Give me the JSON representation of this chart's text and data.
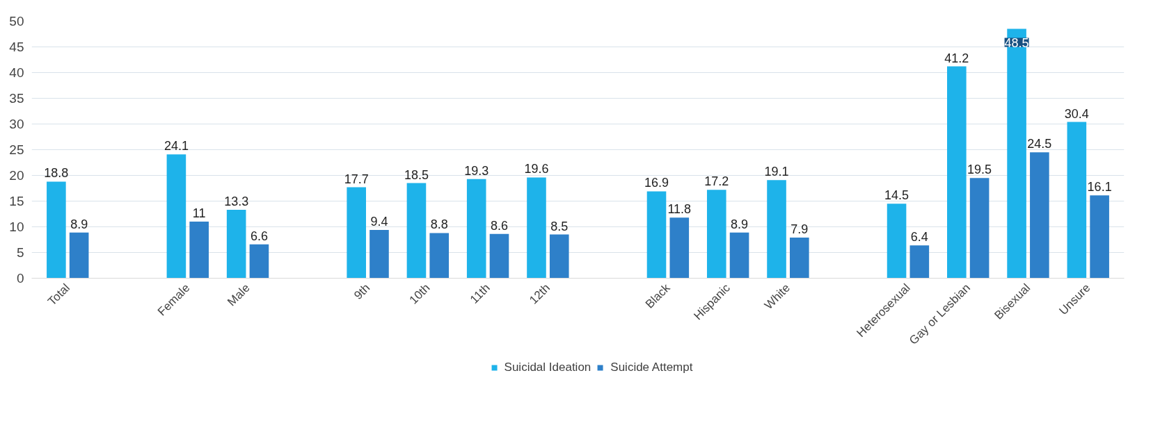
{
  "chart_data": {
    "type": "bar",
    "categories": [
      "Total",
      null,
      "Female",
      "Male",
      null,
      "9th",
      "10th",
      "11th",
      "12th",
      null,
      "Black",
      "Hispanic",
      "White",
      null,
      "Heterosexual",
      "Gay or Lesbian",
      "Bisexual",
      "Unsure"
    ],
    "series": [
      {
        "name": "Suicidal Ideation",
        "color": "#1eb3ea",
        "values": [
          18.8,
          null,
          24.1,
          13.3,
          null,
          17.7,
          18.5,
          19.3,
          19.6,
          null,
          16.9,
          17.2,
          19.1,
          null,
          14.5,
          41.2,
          48.5,
          30.4
        ]
      },
      {
        "name": "Suicide Attempt",
        "color": "#2e80c9",
        "values": [
          8.9,
          null,
          11,
          6.6,
          null,
          9.4,
          8.8,
          8.6,
          8.5,
          null,
          11.8,
          8.9,
          7.9,
          null,
          6.4,
          19.5,
          24.5,
          16.1
        ]
      }
    ],
    "ylim": [
      0,
      50
    ],
    "yticks": [
      0,
      5,
      10,
      15,
      20,
      25,
      30,
      35,
      40,
      45,
      50
    ],
    "grid": "y",
    "legend": "bottom",
    "data_labels": true
  }
}
